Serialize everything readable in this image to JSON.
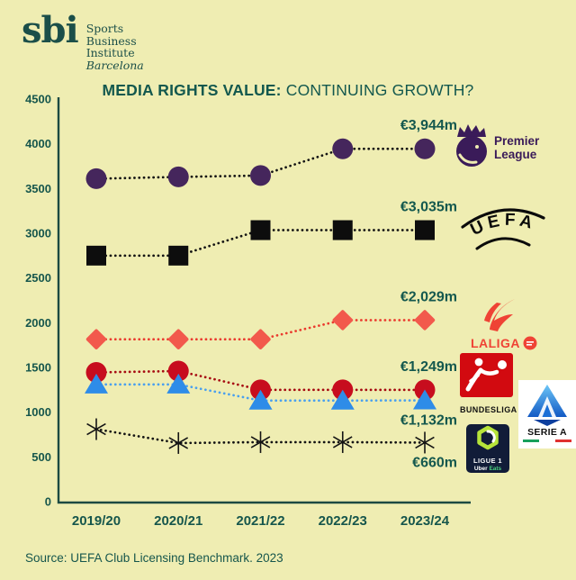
{
  "brand": {
    "mark": "sbi",
    "lines": [
      "Sports",
      "Business",
      "Institute",
      "Barcelona"
    ]
  },
  "title": {
    "bold": "MEDIA RIGHTS VALUE:",
    "rest": " CONTINUING GROWTH?"
  },
  "source": "Source: UEFA Club Licensing Benchmark. 2023",
  "colors": {
    "background": "#efedb2",
    "teal_text": "#14584e",
    "axis": "#1c4a42",
    "premier_purple": "#3a1b59",
    "laliga_coral": "#ef4335",
    "bundesliga_red": "#d20a10",
    "seriea_blue": "#2e8ce8",
    "ligue1_navy": "#111c38"
  },
  "chart_data": {
    "type": "line",
    "categories": [
      "2019/20",
      "2020/21",
      "2021/22",
      "2022/23",
      "2023/24"
    ],
    "y_ticks": [
      0,
      500,
      1000,
      1500,
      2000,
      2500,
      3000,
      3500,
      4000,
      4500
    ],
    "ylim": [
      0,
      4500
    ],
    "grid": false,
    "legend_position": "right",
    "note": "values in million euro; unlabeled points estimated from plot",
    "series": [
      {
        "name": "Premier League",
        "marker": "circle",
        "color": "#45265c",
        "line_color": "#141414",
        "values": [
          3610,
          3630,
          3645,
          3944,
          3944
        ],
        "label": "€3,944m",
        "label_position": "above"
      },
      {
        "name": "UEFA",
        "marker": "square",
        "color": "#0d0d0d",
        "line_color": "#141414",
        "values": [
          2750,
          2750,
          3035,
          3035,
          3035
        ],
        "label": "€3,035m",
        "label_position": "above"
      },
      {
        "name": "LaLiga",
        "marker": "diamond",
        "color": "#f2594c",
        "line_color": "#ea3a2e",
        "values": [
          1815,
          1815,
          1815,
          2029,
          2029
        ],
        "label": "€2,029m",
        "label_position": "above"
      },
      {
        "name": "Bundesliga",
        "marker": "circle",
        "color": "#c70d1e",
        "line_color": "#a60b12",
        "values": [
          1445,
          1460,
          1250,
          1250,
          1249
        ],
        "label": "€1,249m",
        "label_position": "above"
      },
      {
        "name": "Serie A",
        "marker": "triangle",
        "color": "#2e8ce8",
        "line_color": "#4aa0ee",
        "values": [
          1310,
          1310,
          1130,
          1130,
          1132
        ],
        "label": "€1,132m",
        "label_position": "below"
      },
      {
        "name": "Ligue 1",
        "marker": "asterisk",
        "color": "#141414",
        "line_color": "#141414",
        "values": [
          810,
          655,
          665,
          665,
          660
        ],
        "label": "€660m",
        "label_position": "below"
      }
    ]
  },
  "logos": {
    "premier_league": {
      "line1": "Premier",
      "line2": "League"
    },
    "uefa": "UEFA",
    "laliga": "LALIGA",
    "bundesliga": "BUNDESLIGA",
    "serie_a": "SERIE A",
    "ligue1": {
      "name": "LIGUE 1",
      "uber": "Uber",
      "eats": "Eats"
    }
  }
}
